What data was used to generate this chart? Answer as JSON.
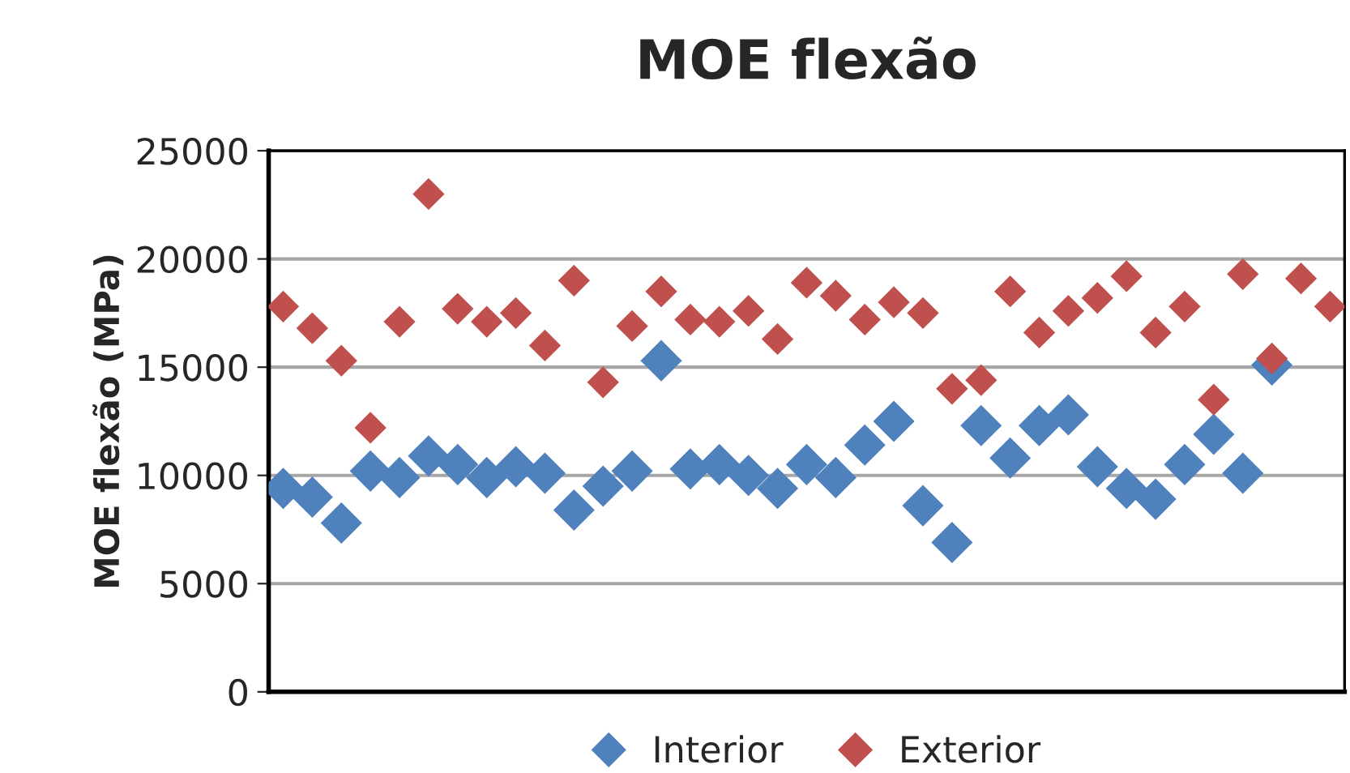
{
  "chart_data": {
    "type": "scatter",
    "title": "MOE flexão",
    "ylabel": "MOE flexão (MPa)",
    "categories": [
      null,
      null,
      null,
      null,
      null,
      null,
      null,
      null,
      null,
      null,
      null,
      null,
      null,
      null,
      null,
      null,
      null,
      null,
      null,
      null,
      null,
      null,
      null,
      null,
      null,
      null,
      null,
      null,
      null,
      null,
      null,
      null,
      null,
      null,
      null,
      null,
      null
    ],
    "series": [
      {
        "name": "Interior",
        "color": "#4f81bd",
        "values": [
          9400,
          9000,
          7800,
          10200,
          9900,
          10900,
          10500,
          9900,
          10400,
          10100,
          8400,
          9500,
          10200,
          15300,
          10300,
          10500,
          10000,
          9400,
          10500,
          9900,
          11400,
          12500,
          8600,
          6900,
          12300,
          10800,
          12300,
          12800,
          10400,
          9400,
          8900,
          10500,
          11900,
          10100,
          15100,
          null,
          null
        ]
      },
      {
        "name": "Exterior",
        "color": "#c0504d",
        "values": [
          17800,
          16800,
          15300,
          12200,
          17100,
          23000,
          17700,
          17100,
          17500,
          16000,
          19000,
          14300,
          16900,
          18500,
          17200,
          17100,
          17600,
          16300,
          18900,
          18300,
          17200,
          18000,
          17500,
          14000,
          14400,
          18500,
          16600,
          17600,
          18200,
          19200,
          16600,
          17800,
          13500,
          19300,
          15400,
          19100,
          17800
        ]
      }
    ],
    "ylim": [
      0,
      25000
    ],
    "yticks": [
      0,
      5000,
      10000,
      15000,
      20000,
      25000
    ],
    "grid": "y",
    "legend": "bottom",
    "marker": "diamond"
  }
}
